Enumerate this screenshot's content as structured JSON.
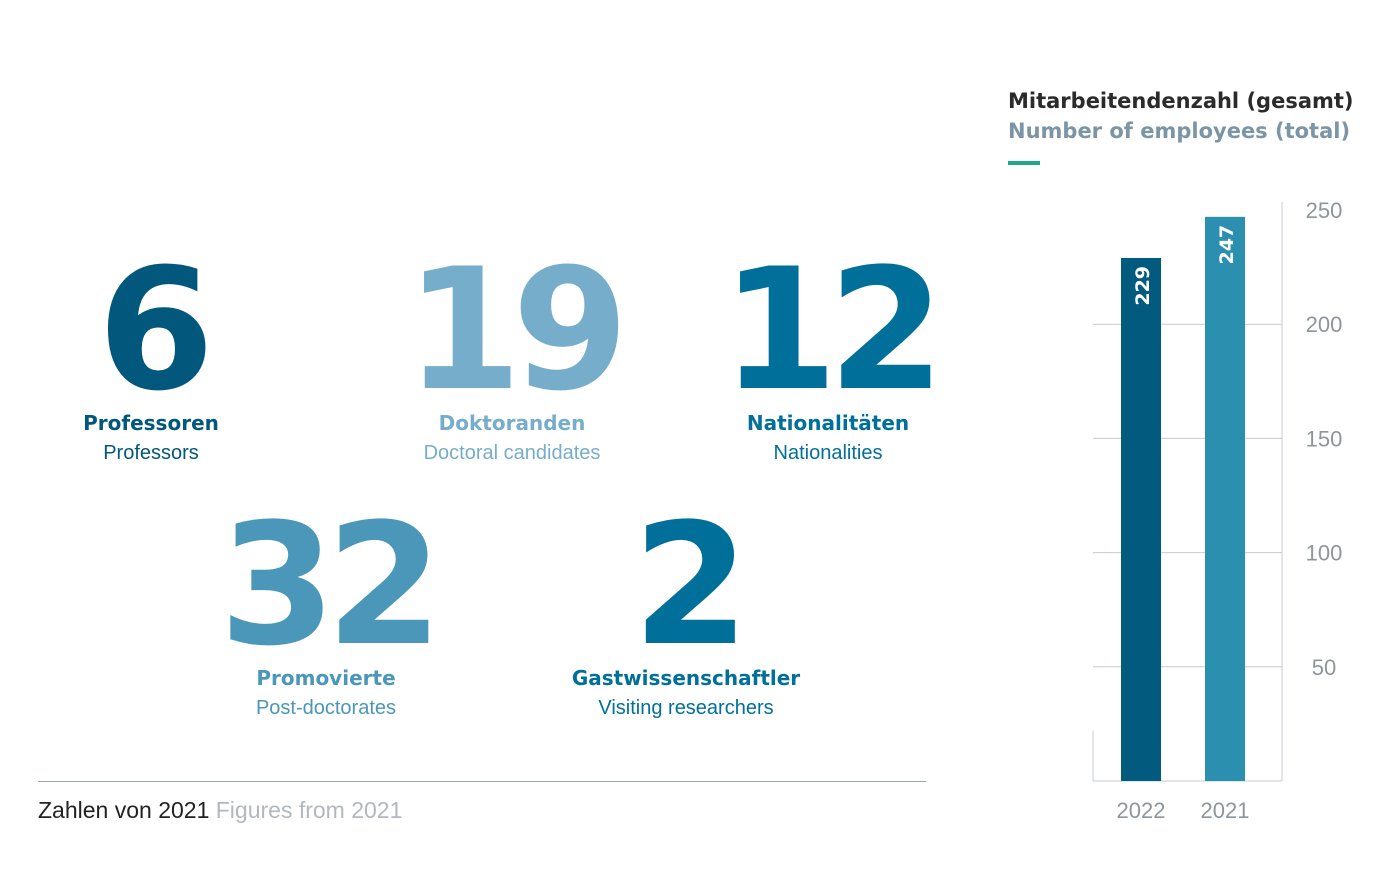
{
  "colors": {
    "dark_teal": "#02587c",
    "petrol": "#00709a",
    "light_blue": "#76adca",
    "mid_blue": "#4a97b9",
    "bar_2022": "#025a7e",
    "bar_2021": "#2b8fb0",
    "accent_green": "#1aa88c",
    "grid": "#c4ccd2",
    "axis_text": "#8e969c"
  },
  "stats": [
    {
      "value": "6",
      "label_de": "Professoren",
      "label_en": "Professors",
      "color": "#02587c"
    },
    {
      "value": "19",
      "label_de": "Doktoranden",
      "label_en": "Doctoral candidates",
      "color": "#76adca"
    },
    {
      "value": "12",
      "label_de": "Nationalitäten",
      "label_en": "Nationalities",
      "color": "#00709a"
    },
    {
      "value": "32",
      "label_de": "Promovierte",
      "label_en": "Post-doctorates",
      "color": "#4a97b9"
    },
    {
      "value": "2",
      "label_de": "Gastwissenschaftler",
      "label_en": "Visiting researchers",
      "color": "#00709a"
    }
  ],
  "footnote": {
    "de": "Zahlen von 2021",
    "en": "Figures from 2021"
  },
  "chart_data": {
    "type": "bar",
    "title": "Mitarbeitendenzahl (gesamt)",
    "subtitle": "Number of employees (total)",
    "categories": [
      "2022",
      "2021"
    ],
    "values": [
      229,
      247
    ],
    "ylim": [
      0,
      250
    ],
    "yticks": [
      50,
      100,
      150,
      200,
      250
    ],
    "grid": true,
    "y_axis_side": "right",
    "value_labels": "inside-top-rotated"
  }
}
